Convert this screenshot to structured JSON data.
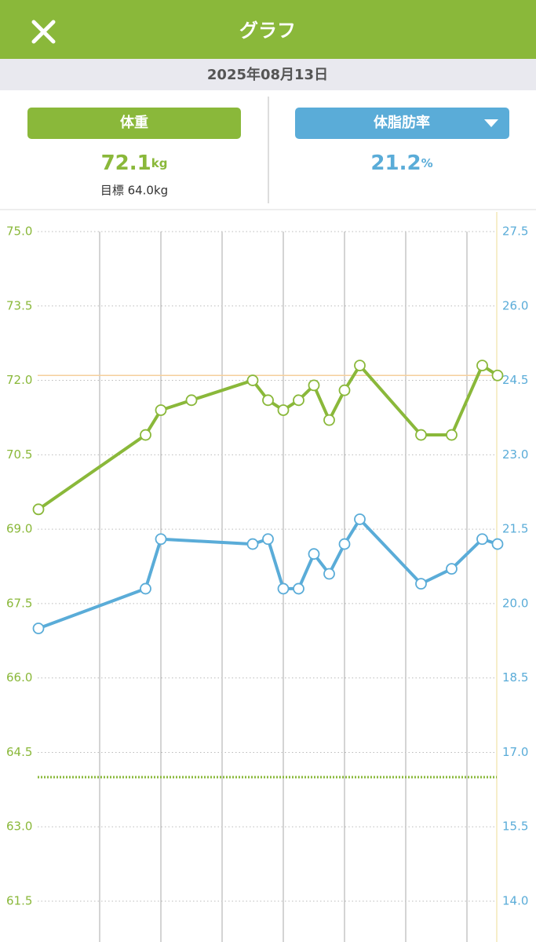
{
  "header": {
    "title": "グラフ"
  },
  "date": "2025年08月13日",
  "weight_card": {
    "label": "体重",
    "value": "72.1",
    "unit": "kg",
    "goal": "目標 64.0kg"
  },
  "fat_card": {
    "label": "体脂肪率",
    "value": "21.2",
    "unit": "%"
  },
  "chart_data": {
    "type": "line",
    "xlim": [
      0,
      30
    ],
    "xticks": [
      4,
      8,
      12,
      16,
      20,
      24,
      28
    ],
    "ylim": [
      61.5,
      75
    ],
    "yticks": [
      {
        "value": 75,
        "label": "75.0"
      },
      73.5,
      {
        "value": 72,
        "label": "72.0"
      },
      70.5,
      {
        "value": 69,
        "label": "69.0"
      },
      67.5,
      {
        "value": 66,
        "label": "66.0"
      },
      64.5,
      {
        "value": 63,
        "label": "63.0"
      },
      61.5
    ],
    "y2lim": [
      14,
      27.5
    ],
    "y2ticks": [
      27.5,
      {
        "value": 26,
        "label": "26.0"
      },
      24.5,
      {
        "value": 23,
        "label": "23.0"
      },
      21.5,
      {
        "value": 20,
        "label": "20.0"
      },
      18.5,
      {
        "value": 17,
        "label": "17.0"
      },
      15.5,
      {
        "value": 14,
        "label": "14.0"
      }
    ],
    "grid": true,
    "series": [
      {
        "color": "#8ab83a",
        "axis": "y",
        "x": [
          0,
          7,
          8,
          10,
          14,
          15,
          16,
          17,
          18,
          19,
          20,
          21,
          25,
          27,
          29,
          30
        ],
        "values": [
          69.4,
          70.9,
          71.4,
          71.6,
          72.0,
          71.6,
          71.4,
          71.6,
          71.9,
          71.2,
          71.8,
          72.3,
          70.9,
          70.9,
          72.3,
          72.1
        ]
      },
      {
        "color": "#5aacd8",
        "axis": "y2",
        "x": [
          0,
          7,
          8,
          14,
          15,
          16,
          17,
          18,
          19,
          20,
          21,
          25,
          27,
          29,
          30
        ],
        "values": [
          19.5,
          20.3,
          21.3,
          21.2,
          21.3,
          20.3,
          20.3,
          21.0,
          20.6,
          21.2,
          21.7,
          20.4,
          20.7,
          21.3,
          21.2
        ]
      }
    ],
    "reference_lines": [
      {
        "value": 72.1,
        "axis": "y",
        "color": "#f5cf9c",
        "style": "solid"
      },
      {
        "value": 64.0,
        "axis": "y",
        "color": "#8ab83a",
        "style": "dotted"
      }
    ]
  }
}
